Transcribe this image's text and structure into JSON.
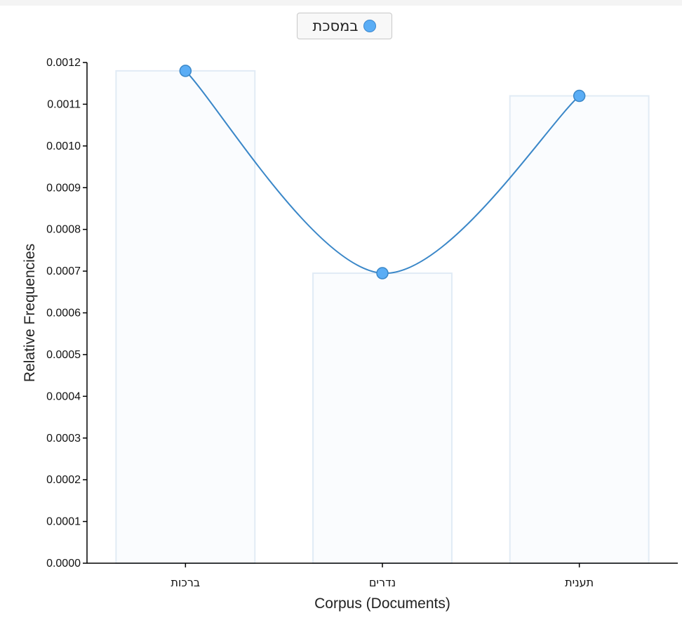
{
  "legend": {
    "label": "במסכת",
    "color": "#5aadf5"
  },
  "chart_data": {
    "type": "bar",
    "categories": [
      "ברכות",
      "נדרים",
      "תענית"
    ],
    "series": [
      {
        "name": "במסכת",
        "values": [
          0.00118,
          0.000695,
          0.00112
        ]
      }
    ],
    "overlay": "line",
    "xlabel": "Corpus (Documents)",
    "ylabel": "Relative Frequencies",
    "ylim": [
      0,
      0.0012
    ],
    "yticks": [
      "0.0000",
      "0.0001",
      "0.0002",
      "0.0003",
      "0.0004",
      "0.0005",
      "0.0006",
      "0.0007",
      "0.0008",
      "0.0009",
      "0.0010",
      "0.0011",
      "0.0012"
    ],
    "grid": false,
    "legend_position": "top-center",
    "colors": {
      "line": "#3a87c8",
      "point": "#5aadf5",
      "bar_fill": "#fafcfe",
      "bar_stroke": "#e1ebf5"
    }
  }
}
